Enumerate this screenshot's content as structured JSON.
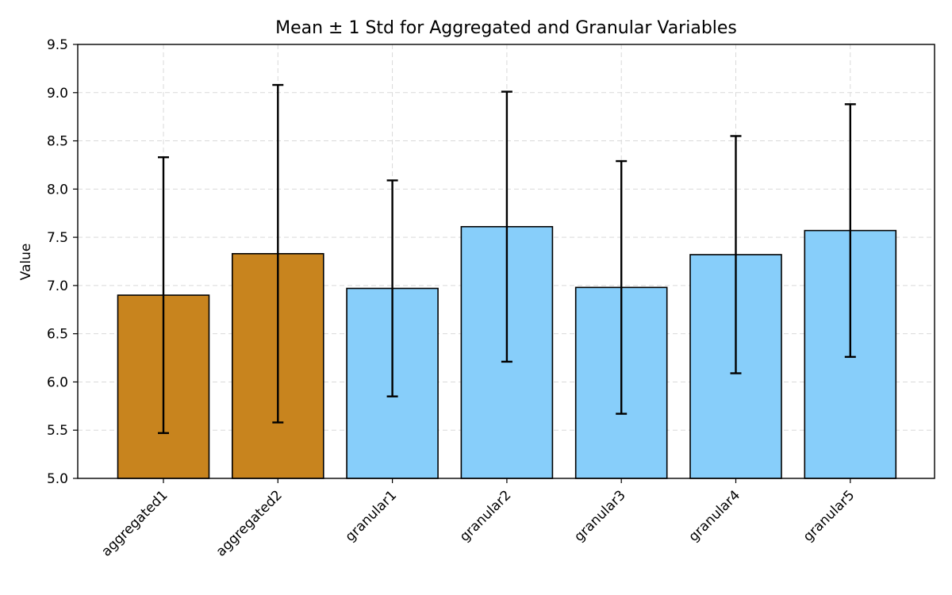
{
  "chart_data": {
    "type": "bar",
    "title": "Mean ± 1 Std for Aggregated and Granular Variables",
    "xlabel": "",
    "ylabel": "Value",
    "ylim": [
      5.0,
      9.5
    ],
    "yticks": [
      "5.0",
      "5.5",
      "6.0",
      "6.5",
      "7.0",
      "7.5",
      "8.0",
      "8.5",
      "9.0",
      "9.5"
    ],
    "grid": true,
    "categories": [
      "aggregated1",
      "aggregated2",
      "granular1",
      "granular2",
      "granular3",
      "granular4",
      "granular5"
    ],
    "values": [
      6.9,
      7.33,
      6.97,
      7.61,
      6.98,
      7.32,
      7.57
    ],
    "std": [
      1.43,
      1.75,
      1.12,
      1.4,
      1.31,
      1.23,
      1.31
    ],
    "colors": [
      "#c8841e",
      "#c8841e",
      "#87cefa",
      "#87cefa",
      "#87cefa",
      "#87cefa",
      "#87cefa"
    ]
  }
}
